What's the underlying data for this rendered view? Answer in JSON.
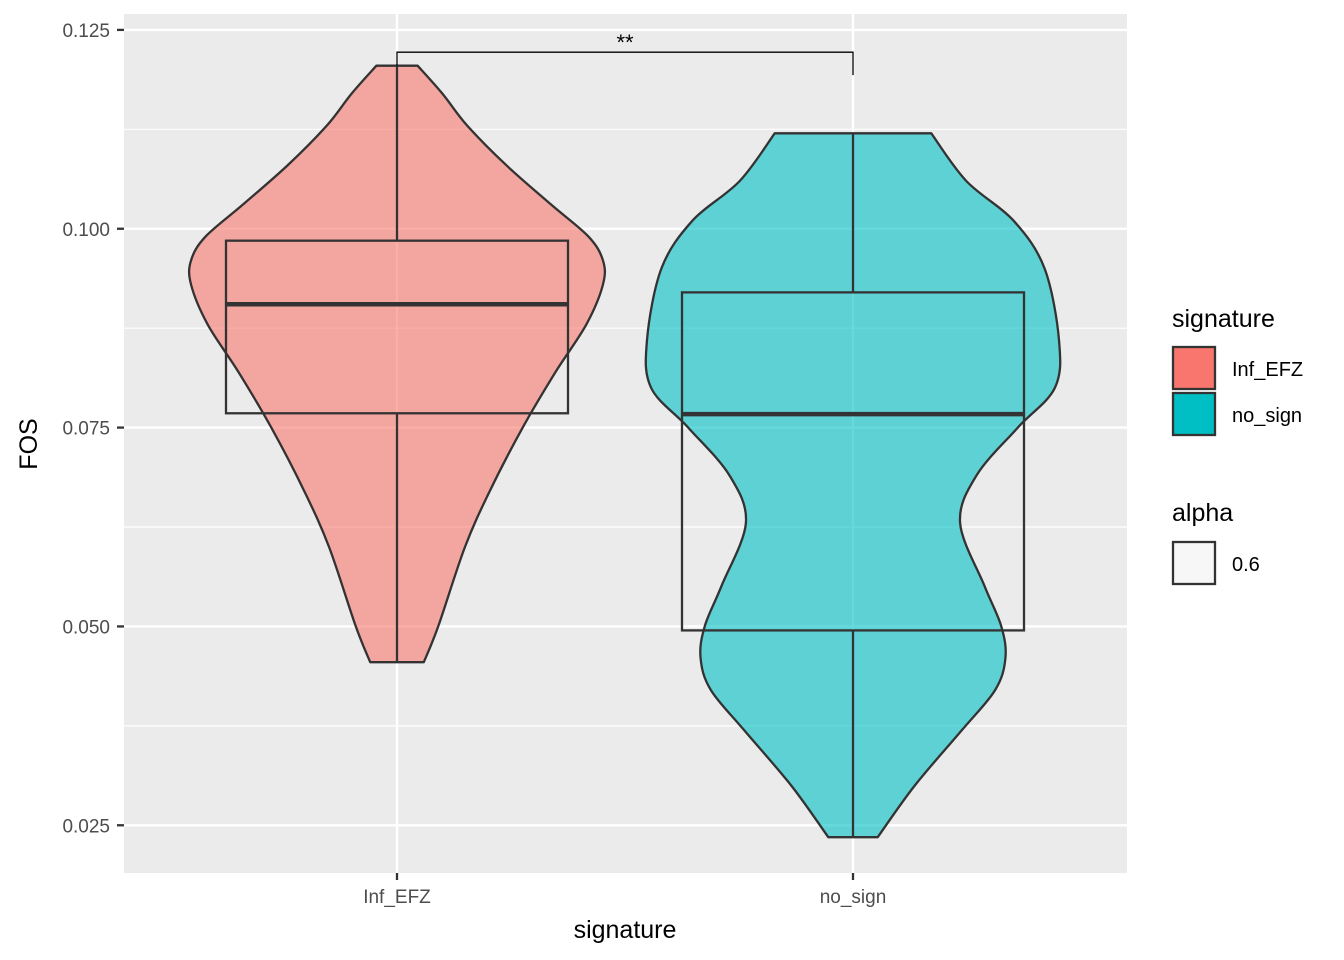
{
  "chart_data": {
    "type": "violin",
    "xlabel": "signature",
    "ylabel": "FOS",
    "ylim": [
      0.019,
      0.127
    ],
    "y_ticks": [
      0.025,
      0.05,
      0.075,
      0.1,
      0.125
    ],
    "y_tick_labels": [
      "0.025",
      "0.050",
      "0.075",
      "0.100",
      "0.125"
    ],
    "categories": [
      "Inf_EFZ",
      "no_sign"
    ],
    "colors": {
      "Inf_EFZ": "#F8766D",
      "no_sign": "#00BFC4"
    },
    "fill_alpha": 0.6,
    "groups": [
      {
        "name": "Inf_EFZ",
        "min": 0.0455,
        "q1": 0.0768,
        "median": 0.0905,
        "q3": 0.0985,
        "max": 0.1205,
        "violin_profile": [
          [
            0.0455,
            0.13
          ],
          [
            0.05,
            0.2
          ],
          [
            0.06,
            0.33
          ],
          [
            0.067,
            0.45
          ],
          [
            0.075,
            0.61
          ],
          [
            0.082,
            0.77
          ],
          [
            0.088,
            0.92
          ],
          [
            0.093,
            1.0
          ],
          [
            0.096,
            1.0
          ],
          [
            0.099,
            0.93
          ],
          [
            0.103,
            0.75
          ],
          [
            0.108,
            0.53
          ],
          [
            0.113,
            0.34
          ],
          [
            0.117,
            0.22
          ],
          [
            0.1205,
            0.1
          ]
        ]
      },
      {
        "name": "no_sign",
        "min": 0.0235,
        "q1": 0.0495,
        "median": 0.0767,
        "q3": 0.092,
        "max": 0.112,
        "violin_profile": [
          [
            0.0235,
            0.12
          ],
          [
            0.03,
            0.3
          ],
          [
            0.037,
            0.53
          ],
          [
            0.042,
            0.69
          ],
          [
            0.046,
            0.74
          ],
          [
            0.05,
            0.72
          ],
          [
            0.055,
            0.64
          ],
          [
            0.063,
            0.52
          ],
          [
            0.069,
            0.6
          ],
          [
            0.075,
            0.8
          ],
          [
            0.08,
            0.98
          ],
          [
            0.086,
            1.0
          ],
          [
            0.095,
            0.93
          ],
          [
            0.101,
            0.78
          ],
          [
            0.106,
            0.55
          ],
          [
            0.112,
            0.38
          ]
        ]
      }
    ],
    "significance": {
      "from": "Inf_EFZ",
      "to": "no_sign",
      "label": "**",
      "y": 0.1222
    },
    "legend": {
      "position": "right",
      "fill_title": "signature",
      "fill_items": [
        "Inf_EFZ",
        "no_sign"
      ],
      "alpha_title": "alpha",
      "alpha_items": [
        "0.6"
      ]
    }
  }
}
